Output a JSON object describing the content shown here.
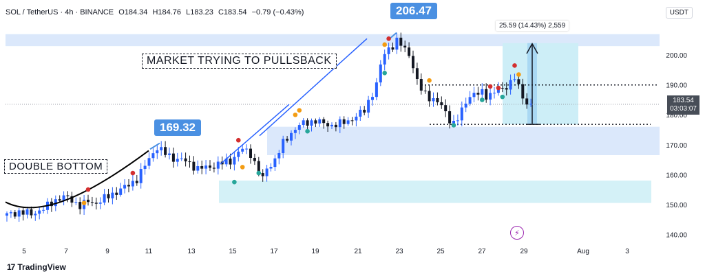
{
  "header": {
    "symbol": "SOL / TetherUS · 4h · BINANCE",
    "open": "O184.34",
    "high": "H184.76",
    "low": "L183.23",
    "close": "C183.54",
    "change": "−0.79 (−0.43%)"
  },
  "currency": "USDT",
  "brand": "TradingView",
  "annotations": {
    "market_text": "MARKET TRYING TO PULLSBACK",
    "double_bottom": "DOUBLE BOTTOM",
    "callout_low": "169.32",
    "callout_high": "206.47",
    "measure": "25.59 (14.43%) 2,559"
  },
  "current_price": {
    "value": "183.54",
    "countdown": "03:03:07"
  },
  "colors": {
    "up": "#2962ff",
    "down": "#131722",
    "zone_blue": "#dbe8fb",
    "zone_cyan": "#d4f1f7",
    "accent": "#4a90e2"
  },
  "chart_data": {
    "type": "candlestick",
    "title": "",
    "x_tick_labels": [
      "5",
      "7",
      "9",
      "11",
      "13",
      "15",
      "17",
      "19",
      "21",
      "23",
      "25",
      "27",
      "29",
      "Aug",
      "3"
    ],
    "y_tick_labels": [
      "140.00",
      "150.00",
      "160.00",
      "170.00",
      "180.00",
      "190.00",
      "200.00"
    ],
    "ylim": [
      138,
      212
    ],
    "grid": false,
    "close_path": [
      [
        0,
        146.5
      ],
      [
        3,
        147.5
      ],
      [
        6,
        146.8
      ],
      [
        9,
        148.5
      ],
      [
        12,
        151.5
      ],
      [
        14,
        152.5
      ],
      [
        16,
        151.5
      ],
      [
        18,
        149.5
      ],
      [
        20,
        151
      ],
      [
        22,
        150.5
      ],
      [
        24,
        152
      ],
      [
        26,
        153.5
      ],
      [
        28,
        155
      ],
      [
        30,
        156.5
      ],
      [
        32,
        158.5
      ],
      [
        34,
        163
      ],
      [
        36,
        167.5
      ],
      [
        37,
        169
      ],
      [
        39,
        167
      ],
      [
        41,
        165.5
      ],
      [
        44,
        164.5
      ],
      [
        47,
        162
      ],
      [
        50,
        162.5
      ],
      [
        52,
        163.5
      ],
      [
        55,
        164.5
      ],
      [
        57,
        167.5
      ],
      [
        58,
        168.5
      ],
      [
        60,
        167
      ],
      [
        62,
        161
      ],
      [
        63,
        158.5
      ],
      [
        64,
        162
      ],
      [
        66,
        165
      ],
      [
        68,
        170.5
      ],
      [
        70,
        174
      ],
      [
        72,
        176.5
      ],
      [
        74,
        177.5
      ],
      [
        76,
        178
      ],
      [
        78,
        177
      ],
      [
        80,
        176.5
      ],
      [
        82,
        177
      ],
      [
        84,
        178
      ],
      [
        86,
        179.5
      ],
      [
        88,
        181.5
      ],
      [
        89,
        184.5
      ],
      [
        91,
        190
      ],
      [
        92,
        196.5
      ],
      [
        93,
        200.5
      ],
      [
        94,
        202.5
      ],
      [
        95,
        203
      ],
      [
        96,
        204.5
      ],
      [
        97,
        203.5
      ],
      [
        99,
        200.5
      ],
      [
        100,
        196
      ],
      [
        101,
        191
      ],
      [
        102,
        188.5
      ],
      [
        104,
        186
      ],
      [
        106,
        184
      ],
      [
        107,
        183
      ],
      [
        108,
        181
      ],
      [
        109,
        178.5
      ],
      [
        110,
        177
      ],
      [
        111,
        178.5
      ],
      [
        112,
        181.5
      ],
      [
        113,
        184.5
      ],
      [
        114,
        186.5
      ],
      [
        116,
        187
      ],
      [
        117,
        187.5
      ],
      [
        118,
        186.5
      ],
      [
        119,
        187
      ],
      [
        120,
        187.5
      ],
      [
        121,
        188.5
      ],
      [
        122,
        188.5
      ],
      [
        124,
        191
      ],
      [
        125,
        192.5
      ],
      [
        126,
        189
      ],
      [
        127,
        186
      ],
      [
        128,
        184
      ],
      [
        129,
        183.5
      ]
    ],
    "horizontal_levels": [
      190,
      176.8
    ],
    "zones": [
      {
        "name": "resistance",
        "low": 203,
        "high": 207
      },
      {
        "name": "support-upper",
        "low": 166.5,
        "high": 176
      },
      {
        "name": "support-lower",
        "low": 150.5,
        "high": 158
      }
    ],
    "signals": {
      "red": [
        [
          20,
          155
        ],
        [
          31,
          160.5
        ],
        [
          57,
          171.5
        ],
        [
          94,
          205.5
        ],
        [
          119,
          189.5
        ],
        [
          121,
          189
        ],
        [
          125,
          196.5
        ]
      ],
      "orange": [
        [
          19,
          150.5
        ],
        [
          58,
          162.5
        ],
        [
          71,
          180
        ],
        [
          72,
          181.5
        ],
        [
          93,
          203.5
        ],
        [
          104,
          191.5
        ],
        [
          126,
          193.5
        ]
      ],
      "green": [
        [
          56,
          157.5
        ],
        [
          62,
          160.5
        ],
        [
          74,
          174.5
        ],
        [
          93,
          194
        ],
        [
          110,
          176.5
        ],
        [
          117,
          185
        ],
        [
          122,
          186
        ]
      ]
    }
  }
}
